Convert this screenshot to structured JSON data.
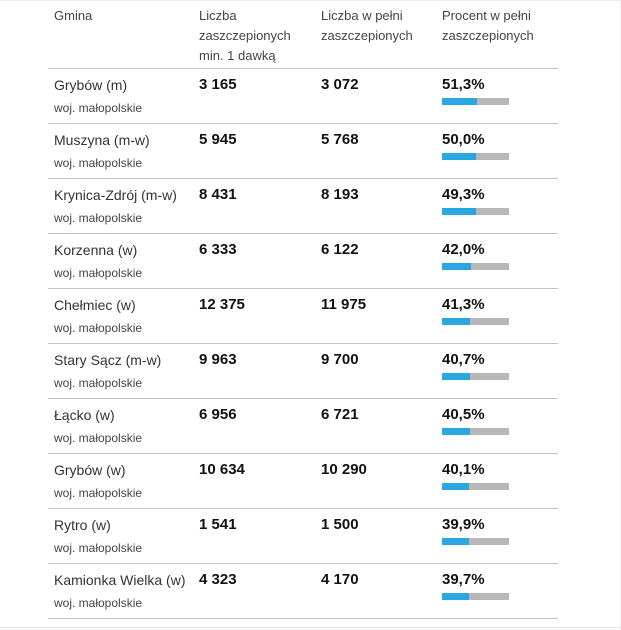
{
  "header": {
    "col_gmina": "Gmina",
    "col_min1": "Liczba zaszczepionych min. 1 dawką",
    "col_full": "Liczba w pełni zaszczepionych",
    "col_pct": "Procent w pełni zaszczepionych"
  },
  "colors": {
    "bar_fill": "#2aa7e0",
    "bar_track": "#b7b7b7"
  },
  "rows": [
    {
      "name": "Grybów (m)",
      "region": "woj. małopolskie",
      "min1": "3 165",
      "full": "3 072",
      "pct": "51,3%",
      "pct_value": 51.3
    },
    {
      "name": "Muszyna (m-w)",
      "region": "woj. małopolskie",
      "min1": "5 945",
      "full": "5 768",
      "pct": "50,0%",
      "pct_value": 50.0
    },
    {
      "name": "Krynica-Zdrój (m-w)",
      "region": "woj. małopolskie",
      "min1": "8 431",
      "full": "8 193",
      "pct": "49,3%",
      "pct_value": 49.3
    },
    {
      "name": "Korzenna (w)",
      "region": "woj. małopolskie",
      "min1": "6 333",
      "full": "6 122",
      "pct": "42,0%",
      "pct_value": 42.0
    },
    {
      "name": "Chełmiec (w)",
      "region": "woj. małopolskie",
      "min1": "12 375",
      "full": "11 975",
      "pct": "41,3%",
      "pct_value": 41.3
    },
    {
      "name": "Stary Sącz (m-w)",
      "region": "woj. małopolskie",
      "min1": "9 963",
      "full": "9 700",
      "pct": "40,7%",
      "pct_value": 40.7
    },
    {
      "name": "Łącko (w)",
      "region": "woj. małopolskie",
      "min1": "6 956",
      "full": "6 721",
      "pct": "40,5%",
      "pct_value": 40.5
    },
    {
      "name": "Grybów (w)",
      "region": "woj. małopolskie",
      "min1": "10 634",
      "full": "10 290",
      "pct": "40,1%",
      "pct_value": 40.1
    },
    {
      "name": "Rytro (w)",
      "region": "woj. małopolskie",
      "min1": "1 541",
      "full": "1 500",
      "pct": "39,9%",
      "pct_value": 39.9
    },
    {
      "name": "Kamionka Wielka (w)",
      "region": "woj. małopolskie",
      "min1": "4 323",
      "full": "4 170",
      "pct": "39,7%",
      "pct_value": 39.7
    }
  ]
}
